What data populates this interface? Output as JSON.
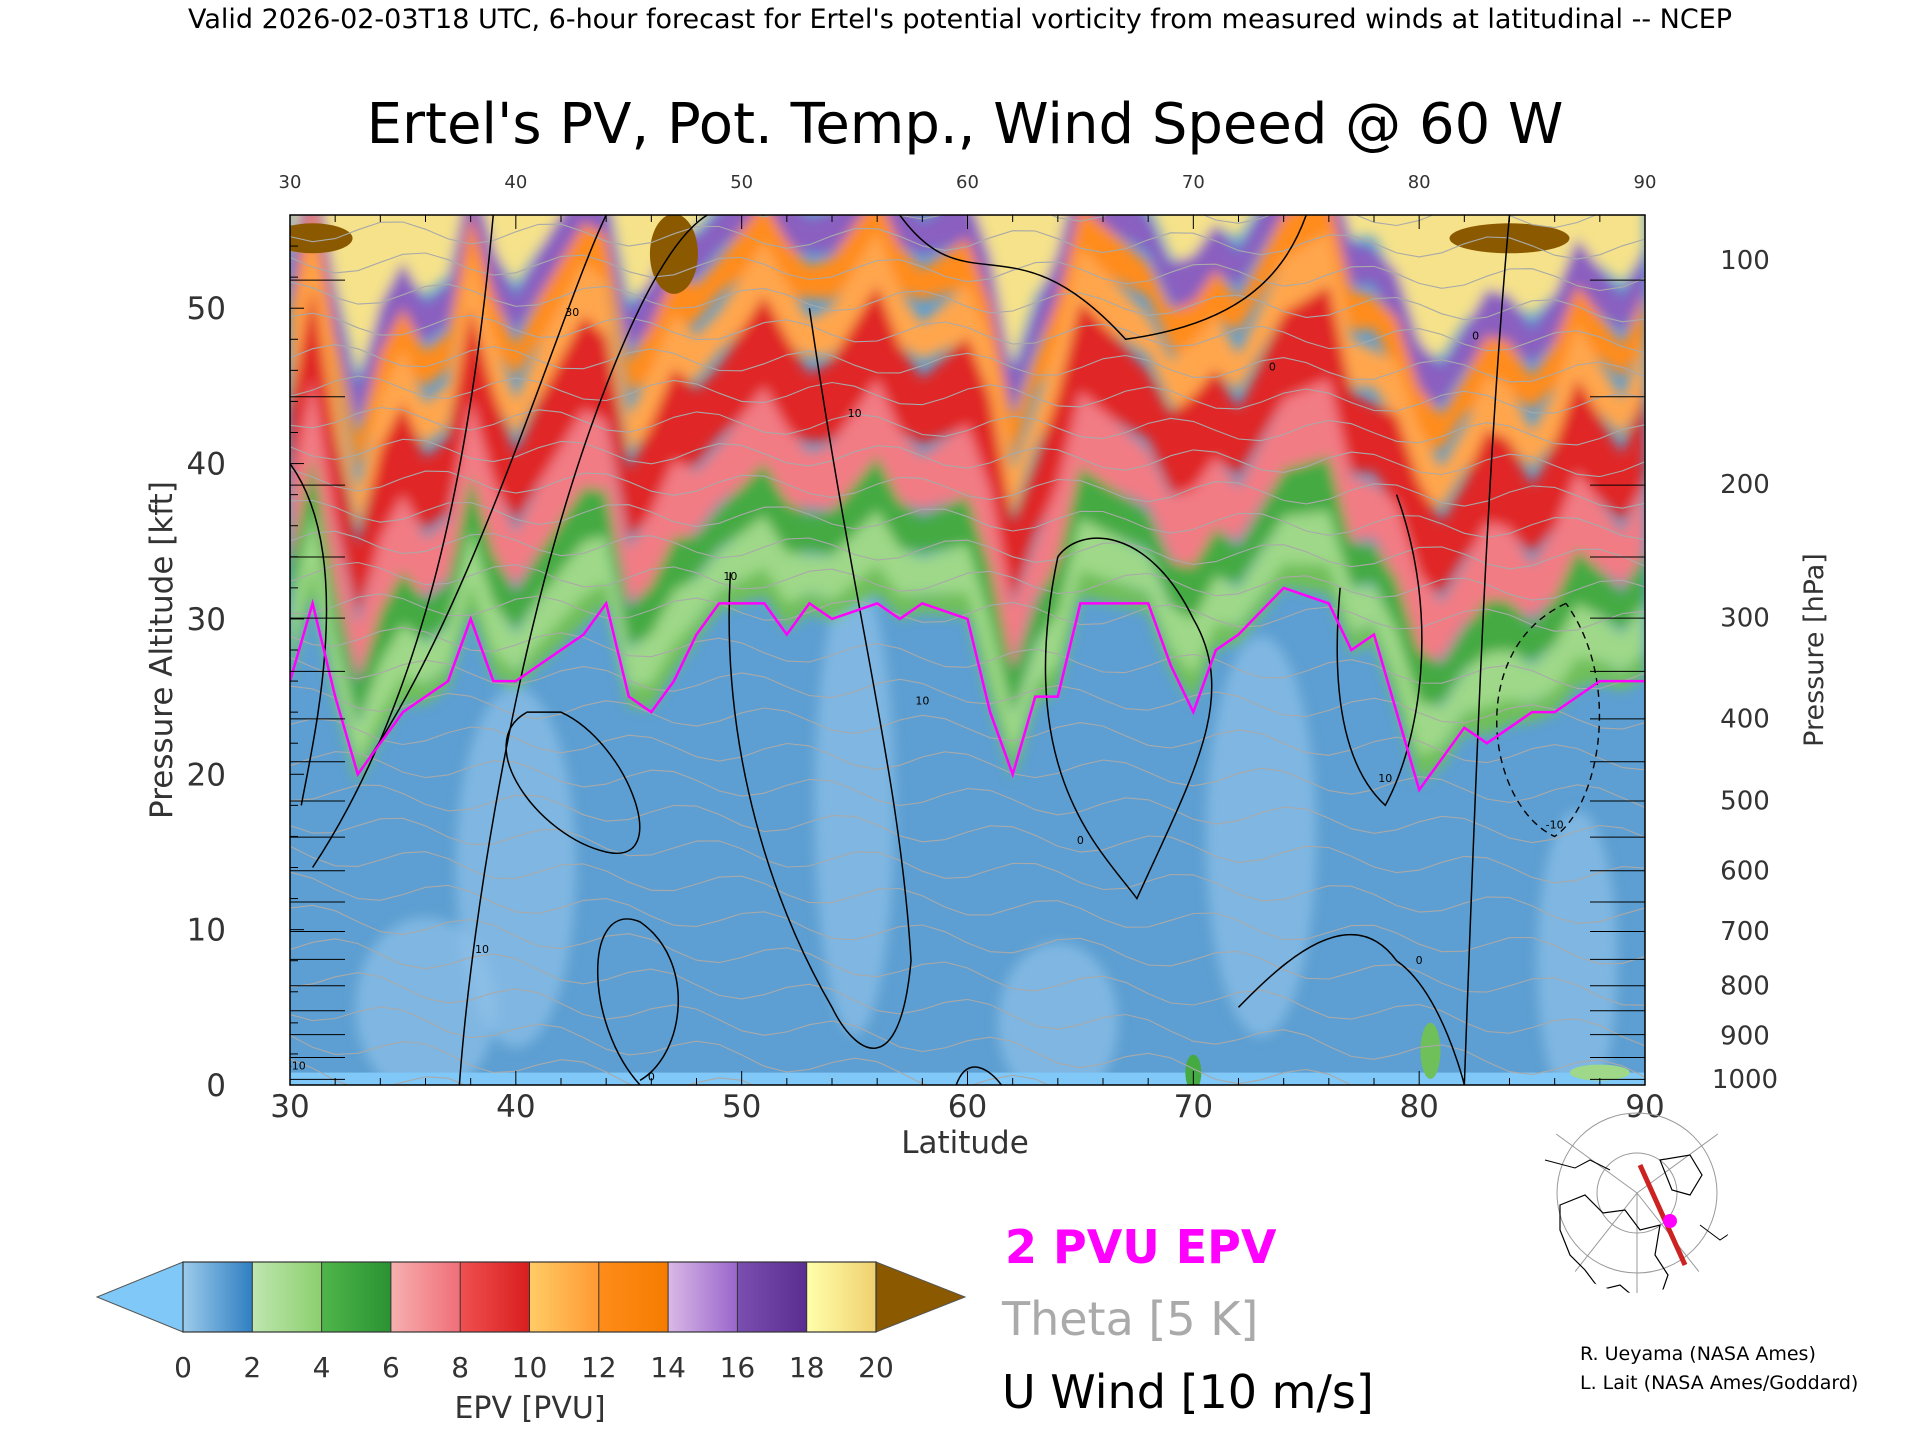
{
  "header": {
    "valid_line": "Valid 2026-02-03T18 UTC, 6-hour forecast for Ertel's potential vorticity from measured winds at latitudinal -- NCEP"
  },
  "chart_data": {
    "type": "heatmap",
    "title": "Ertel's PV, Pot. Temp., Wind Speed @ 60 W",
    "xlabel": "Latitude",
    "ylabel": "Pressure Altitude [kft]",
    "y2label": "Pressure [hPa]",
    "xlim": [
      30,
      90
    ],
    "ylim": [
      0,
      56
    ],
    "x_ticks": [
      "30",
      "40",
      "50",
      "60",
      "70",
      "80",
      "90"
    ],
    "y_ticks": [
      "0",
      "10",
      "20",
      "30",
      "40",
      "50"
    ],
    "pressure_ticks": [
      {
        "label": "100",
        "kft": 53.1
      },
      {
        "label": "200",
        "kft": 38.7
      },
      {
        "label": "300",
        "kft": 30.1
      },
      {
        "label": "400",
        "kft": 23.6
      },
      {
        "label": "500",
        "kft": 18.3
      },
      {
        "label": "600",
        "kft": 13.8
      },
      {
        "label": "700",
        "kft": 9.9
      },
      {
        "label": "800",
        "kft": 6.4
      },
      {
        "label": "900",
        "kft": 3.2
      },
      {
        "label": "1000",
        "kft": 0.4
      }
    ],
    "legend_items": [
      {
        "label": "2 PVU EPV",
        "color": "#ff00ff"
      },
      {
        "label": "Theta [5 K]",
        "color": "#aaaaaa"
      },
      {
        "label": "U Wind [10 m/s]",
        "color": "#000000"
      }
    ],
    "colorbar": {
      "label": "EPV [PVU]",
      "tick_labels": [
        "0",
        "2",
        "4",
        "6",
        "8",
        "10",
        "12",
        "14",
        "16",
        "18",
        "20"
      ],
      "under_color": "#7fc8f8",
      "over_color": "#8b5a00",
      "bins": [
        {
          "from": 0,
          "to": 2,
          "colors": [
            "#9ccbeb",
            "#2f7fc2"
          ]
        },
        {
          "from": 2,
          "to": 4,
          "colors": [
            "#bfe6b0",
            "#8ccf6e"
          ]
        },
        {
          "from": 4,
          "to": 6,
          "colors": [
            "#4fb64a",
            "#2a9232"
          ]
        },
        {
          "from": 6,
          "to": 8,
          "colors": [
            "#f6b0b0",
            "#f06e78"
          ]
        },
        {
          "from": 8,
          "to": 10,
          "colors": [
            "#f05050",
            "#d81e1e"
          ]
        },
        {
          "from": 10,
          "to": 12,
          "colors": [
            "#ffcc66",
            "#ff9933"
          ]
        },
        {
          "from": 12,
          "to": 14,
          "colors": [
            "#ff8c1a",
            "#f57c00"
          ]
        },
        {
          "from": 14,
          "to": 16,
          "colors": [
            "#d9b8e6",
            "#9966cc"
          ]
        },
        {
          "from": 16,
          "to": 18,
          "colors": [
            "#7a4fb0",
            "#5a2d91"
          ]
        },
        {
          "from": 18,
          "to": 20,
          "colors": [
            "#ffffaa",
            "#f0d070"
          ]
        }
      ]
    },
    "tropopause_2pvu_kft": [
      {
        "lat": 30,
        "kft": 26
      },
      {
        "lat": 31,
        "kft": 31
      },
      {
        "lat": 32,
        "kft": 25
      },
      {
        "lat": 33,
        "kft": 20
      },
      {
        "lat": 34,
        "kft": 22
      },
      {
        "lat": 35,
        "kft": 24
      },
      {
        "lat": 36,
        "kft": 25
      },
      {
        "lat": 37,
        "kft": 26
      },
      {
        "lat": 38,
        "kft": 30
      },
      {
        "lat": 39,
        "kft": 26
      },
      {
        "lat": 40,
        "kft": 26
      },
      {
        "lat": 41,
        "kft": 27
      },
      {
        "lat": 43,
        "kft": 29
      },
      {
        "lat": 44,
        "kft": 31
      },
      {
        "lat": 45,
        "kft": 25
      },
      {
        "lat": 46,
        "kft": 24
      },
      {
        "lat": 47,
        "kft": 26
      },
      {
        "lat": 48,
        "kft": 29
      },
      {
        "lat": 49,
        "kft": 31
      },
      {
        "lat": 51,
        "kft": 31
      },
      {
        "lat": 52,
        "kft": 29
      },
      {
        "lat": 53,
        "kft": 31
      },
      {
        "lat": 54,
        "kft": 30
      },
      {
        "lat": 56,
        "kft": 31
      },
      {
        "lat": 57,
        "kft": 30
      },
      {
        "lat": 58,
        "kft": 31
      },
      {
        "lat": 60,
        "kft": 30
      },
      {
        "lat": 61,
        "kft": 24
      },
      {
        "lat": 62,
        "kft": 20
      },
      {
        "lat": 63,
        "kft": 25
      },
      {
        "lat": 64,
        "kft": 25
      },
      {
        "lat": 65,
        "kft": 31
      },
      {
        "lat": 68,
        "kft": 31
      },
      {
        "lat": 69,
        "kft": 27
      },
      {
        "lat": 70,
        "kft": 24
      },
      {
        "lat": 71,
        "kft": 28
      },
      {
        "lat": 72,
        "kft": 29
      },
      {
        "lat": 74,
        "kft": 32
      },
      {
        "lat": 76,
        "kft": 31
      },
      {
        "lat": 77,
        "kft": 28
      },
      {
        "lat": 78,
        "kft": 29
      },
      {
        "lat": 79,
        "kft": 24
      },
      {
        "lat": 80,
        "kft": 19
      },
      {
        "lat": 81,
        "kft": 21
      },
      {
        "lat": 82,
        "kft": 23
      },
      {
        "lat": 83,
        "kft": 22
      },
      {
        "lat": 84,
        "kft": 23
      },
      {
        "lat": 85,
        "kft": 24
      },
      {
        "lat": 86,
        "kft": 24
      },
      {
        "lat": 87,
        "kft": 25
      },
      {
        "lat": 88,
        "kft": 26
      },
      {
        "lat": 89,
        "kft": 26
      },
      {
        "lat": 90,
        "kft": 26
      }
    ],
    "u_wind_contour_labels": [
      {
        "text": "30",
        "lat": 42.5,
        "kft": 49.5
      },
      {
        "text": "10",
        "lat": 55.0,
        "kft": 43.0
      },
      {
        "text": "10",
        "lat": 49.5,
        "kft": 32.5
      },
      {
        "text": "10",
        "lat": 58.0,
        "kft": 24.5
      },
      {
        "text": "10",
        "lat": 78.5,
        "kft": 19.5
      },
      {
        "text": "10",
        "lat": 38.5,
        "kft": 8.5
      },
      {
        "text": "0",
        "lat": 65.0,
        "kft": 15.5
      },
      {
        "text": "0",
        "lat": 46.0,
        "kft": 0.3
      },
      {
        "text": "0",
        "lat": 73.5,
        "kft": 46.0
      },
      {
        "text": "0",
        "lat": 82.5,
        "kft": 48.0
      },
      {
        "text": "0",
        "lat": 80.0,
        "kft": 7.8
      },
      {
        "text": "-10",
        "lat": 86.0,
        "kft": 16.5
      },
      {
        "text": "-10",
        "lat": 30.3,
        "kft": 1.0
      }
    ]
  },
  "map_inset": {
    "section_line_color": "#cc2222",
    "marker_color": "#ff00ff"
  },
  "credits": [
    "R. Ueyama (NASA Ames)",
    "L. Lait (NASA Ames/Goddard)"
  ]
}
